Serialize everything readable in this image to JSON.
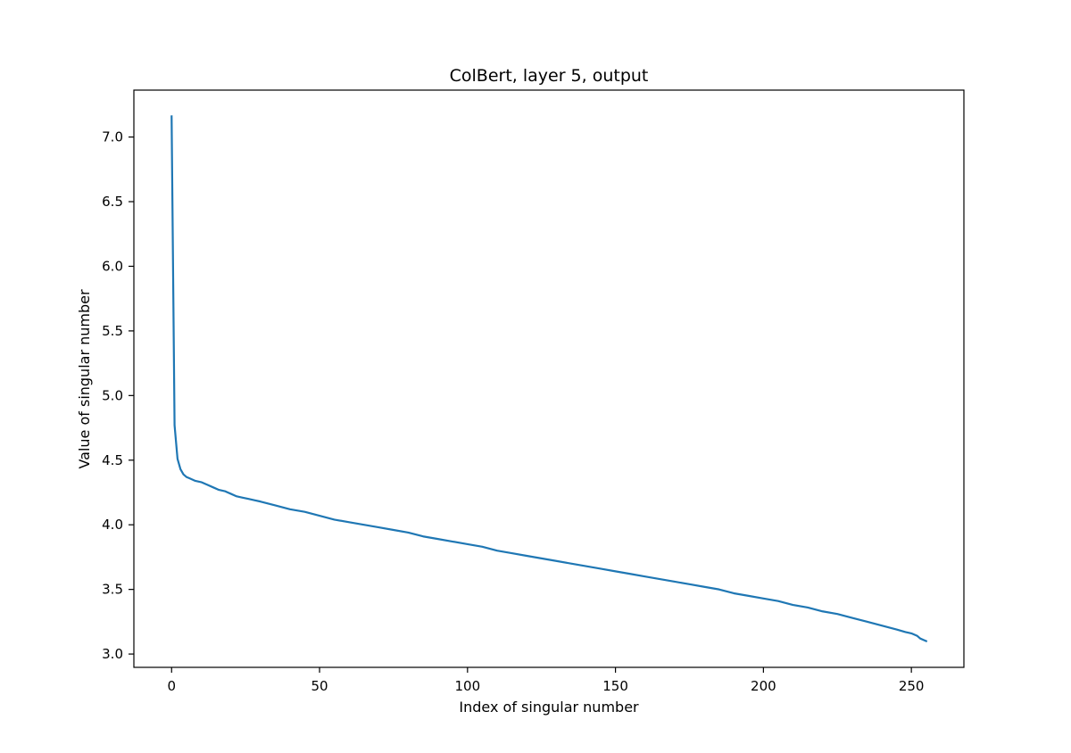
{
  "chart_data": {
    "type": "line",
    "title": "ColBert, layer 5, output",
    "xlabel": "Index of singular number",
    "ylabel": "Value of singular number",
    "xlim": [
      -12.75,
      267.75
    ],
    "ylim": [
      2.897,
      7.363
    ],
    "xticks": [
      0,
      50,
      100,
      150,
      200,
      250
    ],
    "xtick_labels": [
      "0",
      "50",
      "100",
      "150",
      "200",
      "250"
    ],
    "yticks": [
      3.0,
      3.5,
      4.0,
      4.5,
      5.0,
      5.5,
      6.0,
      6.5,
      7.0
    ],
    "ytick_labels": [
      "3.0",
      "3.5",
      "4.0",
      "4.5",
      "5.0",
      "5.5",
      "6.0",
      "6.5",
      "7.0"
    ],
    "grid": false,
    "line_color": "#1f77b4",
    "series": [
      {
        "x": [
          0,
          1,
          2,
          3,
          4,
          5,
          6,
          7,
          8,
          10,
          12,
          14,
          16,
          18,
          20,
          22,
          24,
          26,
          28,
          30,
          35,
          40,
          45,
          50,
          55,
          60,
          65,
          70,
          75,
          80,
          85,
          90,
          95,
          100,
          105,
          110,
          115,
          120,
          125,
          130,
          135,
          140,
          145,
          150,
          155,
          160,
          165,
          170,
          175,
          180,
          185,
          190,
          195,
          200,
          205,
          210,
          215,
          220,
          225,
          230,
          235,
          240,
          245,
          248,
          250,
          252,
          253,
          254,
          255
        ],
        "values": [
          7.16,
          4.77,
          4.51,
          4.43,
          4.39,
          4.37,
          4.36,
          4.35,
          4.34,
          4.33,
          4.31,
          4.29,
          4.27,
          4.26,
          4.24,
          4.22,
          4.21,
          4.2,
          4.19,
          4.18,
          4.15,
          4.12,
          4.1,
          4.07,
          4.04,
          4.02,
          4.0,
          3.98,
          3.96,
          3.94,
          3.91,
          3.89,
          3.87,
          3.85,
          3.83,
          3.8,
          3.78,
          3.76,
          3.74,
          3.72,
          3.7,
          3.68,
          3.66,
          3.64,
          3.62,
          3.6,
          3.58,
          3.56,
          3.54,
          3.52,
          3.5,
          3.47,
          3.45,
          3.43,
          3.41,
          3.38,
          3.36,
          3.33,
          3.31,
          3.28,
          3.25,
          3.22,
          3.19,
          3.17,
          3.16,
          3.14,
          3.12,
          3.11,
          3.1
        ]
      }
    ]
  }
}
